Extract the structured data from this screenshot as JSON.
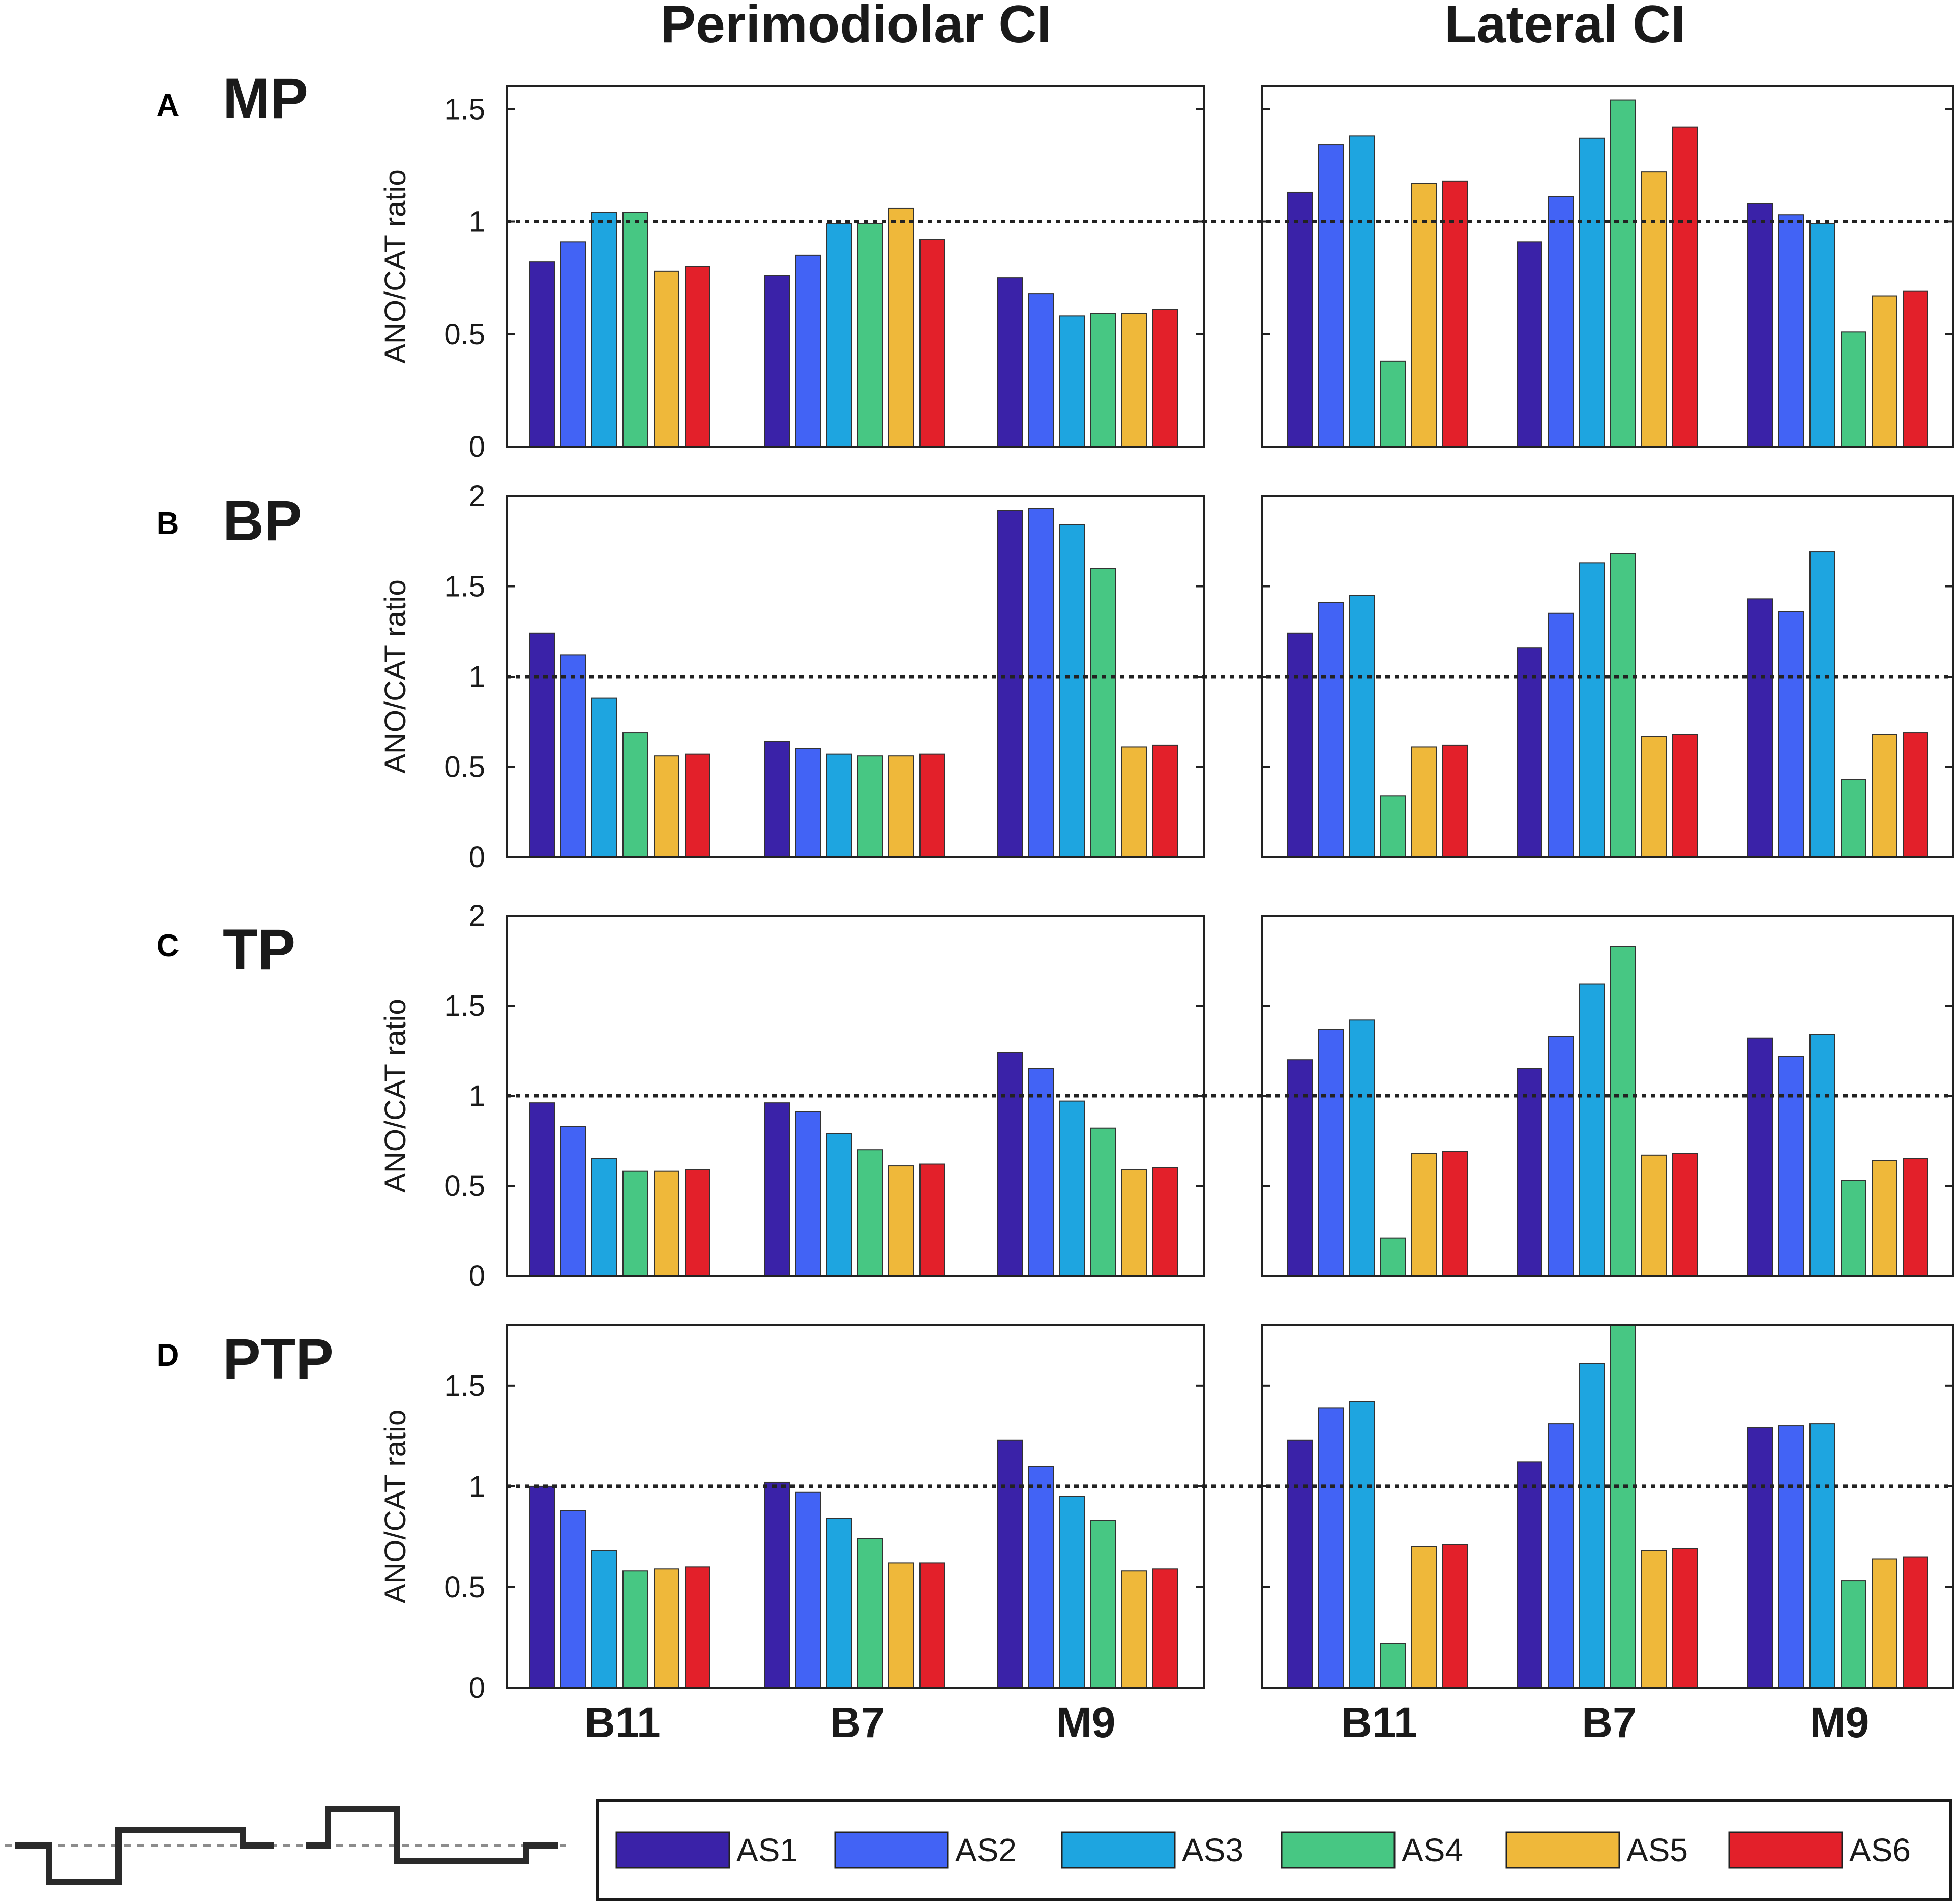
{
  "chart_data": {
    "type": "bar",
    "column_titles": [
      "Perimodiolar CI",
      "Lateral CI"
    ],
    "categories": [
      "B11",
      "B7",
      "M9"
    ],
    "ylabel": "ANO/CAT ratio",
    "reference_line": 1,
    "legend": {
      "position": "bottom-right",
      "entries": [
        {
          "name": "AS1",
          "color": "#3a22a8"
        },
        {
          "name": "AS2",
          "color": "#4263f5"
        },
        {
          "name": "AS3",
          "color": "#1ea5e0"
        },
        {
          "name": "AS4",
          "color": "#47c783"
        },
        {
          "name": "AS5",
          "color": "#efb83a"
        },
        {
          "name": "AS6",
          "color": "#e3202a"
        }
      ]
    },
    "rows": [
      {
        "letter": "A",
        "label": "MP",
        "ylim": [
          0,
          1.6
        ],
        "yticks": [
          0,
          0.5,
          1,
          1.5
        ],
        "ytick_labels": [
          "0",
          "0.5",
          "1",
          "1.5"
        ],
        "panels": [
          {
            "column": "Perimodiolar CI",
            "series": [
              {
                "name": "AS1",
                "values": [
                  0.82,
                  0.76,
                  0.75
                ]
              },
              {
                "name": "AS2",
                "values": [
                  0.91,
                  0.85,
                  0.68
                ]
              },
              {
                "name": "AS3",
                "values": [
                  1.04,
                  0.99,
                  0.58
                ]
              },
              {
                "name": "AS4",
                "values": [
                  1.04,
                  0.99,
                  0.59
                ]
              },
              {
                "name": "AS5",
                "values": [
                  0.78,
                  1.06,
                  0.59
                ]
              },
              {
                "name": "AS6",
                "values": [
                  0.8,
                  0.92,
                  0.61
                ]
              }
            ]
          },
          {
            "column": "Lateral CI",
            "series": [
              {
                "name": "AS1",
                "values": [
                  1.13,
                  0.91,
                  1.08
                ]
              },
              {
                "name": "AS2",
                "values": [
                  1.34,
                  1.11,
                  1.03
                ]
              },
              {
                "name": "AS3",
                "values": [
                  1.38,
                  1.37,
                  0.99
                ]
              },
              {
                "name": "AS4",
                "values": [
                  0.38,
                  1.54,
                  0.51
                ]
              },
              {
                "name": "AS5",
                "values": [
                  1.17,
                  1.22,
                  0.67
                ]
              },
              {
                "name": "AS6",
                "values": [
                  1.18,
                  1.42,
                  0.69
                ]
              }
            ]
          }
        ]
      },
      {
        "letter": "B",
        "label": "BP",
        "ylim": [
          0,
          2
        ],
        "yticks": [
          0,
          0.5,
          1,
          1.5,
          2
        ],
        "ytick_labels": [
          "0",
          "0.5",
          "1",
          "1.5",
          "2"
        ],
        "panels": [
          {
            "column": "Perimodiolar CI",
            "series": [
              {
                "name": "AS1",
                "values": [
                  1.24,
                  0.64,
                  1.92
                ]
              },
              {
                "name": "AS2",
                "values": [
                  1.12,
                  0.6,
                  1.93
                ]
              },
              {
                "name": "AS3",
                "values": [
                  0.88,
                  0.57,
                  1.84
                ]
              },
              {
                "name": "AS4",
                "values": [
                  0.69,
                  0.56,
                  1.6
                ]
              },
              {
                "name": "AS5",
                "values": [
                  0.56,
                  0.56,
                  0.61
                ]
              },
              {
                "name": "AS6",
                "values": [
                  0.57,
                  0.57,
                  0.62
                ]
              }
            ]
          },
          {
            "column": "Lateral CI",
            "series": [
              {
                "name": "AS1",
                "values": [
                  1.24,
                  1.16,
                  1.43
                ]
              },
              {
                "name": "AS2",
                "values": [
                  1.41,
                  1.35,
                  1.36
                ]
              },
              {
                "name": "AS3",
                "values": [
                  1.45,
                  1.63,
                  1.69
                ]
              },
              {
                "name": "AS4",
                "values": [
                  0.34,
                  1.68,
                  0.43
                ]
              },
              {
                "name": "AS5",
                "values": [
                  0.61,
                  0.67,
                  0.68
                ]
              },
              {
                "name": "AS6",
                "values": [
                  0.62,
                  0.68,
                  0.69
                ]
              }
            ]
          }
        ]
      },
      {
        "letter": "C",
        "label": "TP",
        "ylim": [
          0,
          2
        ],
        "yticks": [
          0,
          0.5,
          1,
          1.5,
          2
        ],
        "ytick_labels": [
          "0",
          "0.5",
          "1",
          "1.5",
          "2"
        ],
        "panels": [
          {
            "column": "Perimodiolar CI",
            "series": [
              {
                "name": "AS1",
                "values": [
                  0.96,
                  0.96,
                  1.24
                ]
              },
              {
                "name": "AS2",
                "values": [
                  0.83,
                  0.91,
                  1.15
                ]
              },
              {
                "name": "AS3",
                "values": [
                  0.65,
                  0.79,
                  0.97
                ]
              },
              {
                "name": "AS4",
                "values": [
                  0.58,
                  0.7,
                  0.82
                ]
              },
              {
                "name": "AS5",
                "values": [
                  0.58,
                  0.61,
                  0.59
                ]
              },
              {
                "name": "AS6",
                "values": [
                  0.59,
                  0.62,
                  0.6
                ]
              }
            ]
          },
          {
            "column": "Lateral CI",
            "series": [
              {
                "name": "AS1",
                "values": [
                  1.2,
                  1.15,
                  1.32
                ]
              },
              {
                "name": "AS2",
                "values": [
                  1.37,
                  1.33,
                  1.22
                ]
              },
              {
                "name": "AS3",
                "values": [
                  1.42,
                  1.62,
                  1.34
                ]
              },
              {
                "name": "AS4",
                "values": [
                  0.21,
                  1.83,
                  0.53
                ]
              },
              {
                "name": "AS5",
                "values": [
                  0.68,
                  0.67,
                  0.64
                ]
              },
              {
                "name": "AS6",
                "values": [
                  0.69,
                  0.68,
                  0.65
                ]
              }
            ]
          }
        ]
      },
      {
        "letter": "D",
        "label": "PTP",
        "ylim": [
          0,
          1.8
        ],
        "yticks": [
          0,
          0.5,
          1,
          1.5
        ],
        "ytick_labels": [
          "0",
          "0.5",
          "1",
          "1.5"
        ],
        "panels": [
          {
            "column": "Perimodiolar CI",
            "series": [
              {
                "name": "AS1",
                "values": [
                  1.0,
                  1.02,
                  1.23
                ]
              },
              {
                "name": "AS2",
                "values": [
                  0.88,
                  0.97,
                  1.1
                ]
              },
              {
                "name": "AS3",
                "values": [
                  0.68,
                  0.84,
                  0.95
                ]
              },
              {
                "name": "AS4",
                "values": [
                  0.58,
                  0.74,
                  0.83
                ]
              },
              {
                "name": "AS5",
                "values": [
                  0.59,
                  0.62,
                  0.58
                ]
              },
              {
                "name": "AS6",
                "values": [
                  0.6,
                  0.62,
                  0.59
                ]
              }
            ]
          },
          {
            "column": "Lateral CI",
            "series": [
              {
                "name": "AS1",
                "values": [
                  1.23,
                  1.12,
                  1.29
                ]
              },
              {
                "name": "AS2",
                "values": [
                  1.39,
                  1.31,
                  1.3
                ]
              },
              {
                "name": "AS3",
                "values": [
                  1.42,
                  1.61,
                  1.31
                ]
              },
              {
                "name": "AS4",
                "values": [
                  0.22,
                  1.8,
                  0.53
                ]
              },
              {
                "name": "AS5",
                "values": [
                  0.7,
                  0.68,
                  0.64
                ]
              },
              {
                "name": "AS6",
                "values": [
                  0.71,
                  0.69,
                  0.65
                ]
              }
            ]
          }
        ]
      }
    ]
  }
}
